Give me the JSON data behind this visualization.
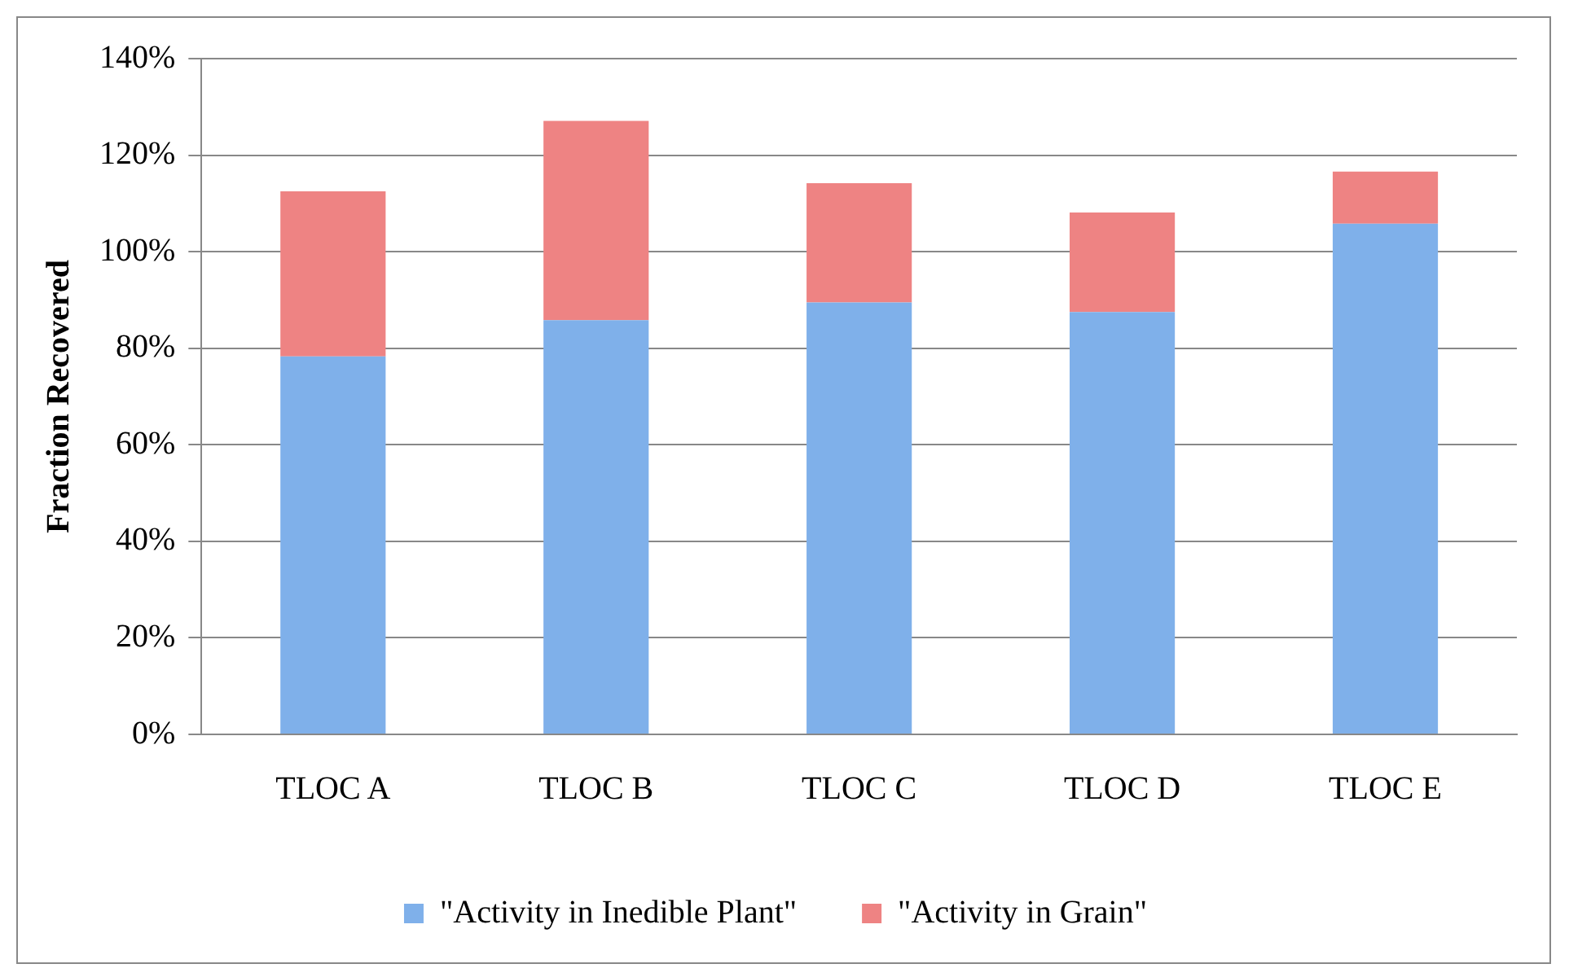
{
  "chart_data": {
    "type": "bar",
    "stacked": true,
    "ylabel": "Fraction Recovered",
    "categories": [
      "TLOC A",
      "TLOC B",
      "TLOC C",
      "TLOC D",
      "TLOC E"
    ],
    "series": [
      {
        "name": "\"Activity in Inedible Plant\"",
        "color": "#7fb0ea",
        "values": [
          78.3,
          85.8,
          89.5,
          87.5,
          105.8
        ]
      },
      {
        "name": "\"Activity in Grain\"",
        "color": "#ee8383",
        "values": [
          34.2,
          41.3,
          24.7,
          20.6,
          10.8
        ]
      }
    ],
    "ylim": [
      0,
      140
    ],
    "yticks": [
      {
        "value": 0,
        "label": "0%"
      },
      {
        "value": 20,
        "label": "20%"
      },
      {
        "value": 40,
        "label": "40%"
      },
      {
        "value": 60,
        "label": "60%"
      },
      {
        "value": 80,
        "label": "80%"
      },
      {
        "value": 100,
        "label": "100%"
      },
      {
        "value": 120,
        "label": "120%"
      },
      {
        "value": 140,
        "label": "140%"
      }
    ],
    "grid": "y",
    "legend": "bottom"
  }
}
